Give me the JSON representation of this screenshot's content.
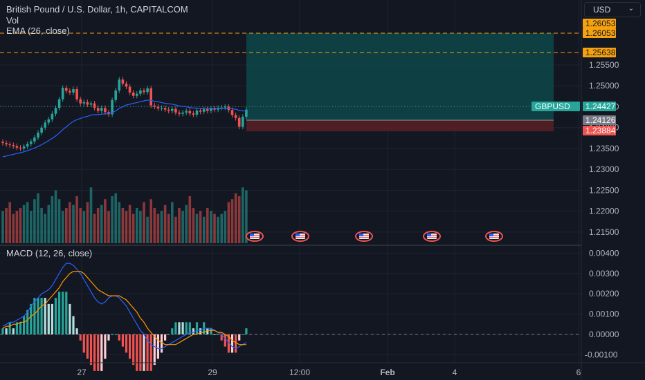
{
  "header": {
    "symbol_title": "British Pound / U.S. Dollar, 1h, CAPITALCOM",
    "volume_label": "Vol",
    "ema_label": "EMA (26, close)",
    "macd_label": "MACD (12, 26, close)",
    "currency_button": "USD"
  },
  "colors": {
    "background": "#131722",
    "up": "#26a69a",
    "down": "#ef5350",
    "ema": "#2962ff",
    "macd_line": "#2962ff",
    "signal_line": "#ff9800",
    "target_zone": "#0e4d4d",
    "stop_zone": "#4d1a1f",
    "dash_level": "#f6a20e"
  },
  "price_axis": {
    "ticks": [
      "1.25500",
      "1.25000",
      "1.24500",
      "1.24000",
      "1.23500",
      "1.23000",
      "1.22500",
      "1.22000",
      "1.21500"
    ],
    "labels": [
      {
        "text": "1.26053",
        "kind": "orange"
      },
      {
        "text": "1.26053",
        "kind": "orange"
      },
      {
        "text": "1.25638",
        "kind": "orange"
      },
      {
        "text": "1.24427",
        "kind": "green"
      },
      {
        "text": "1.24126",
        "kind": "gray"
      },
      {
        "text": "1.23884",
        "kind": "red"
      }
    ],
    "symbol_tag": "GBPUSD"
  },
  "macd_axis": {
    "ticks": [
      "0.00400",
      "0.00300",
      "0.00200",
      "0.00100",
      "0.00000",
      "-0.00100"
    ]
  },
  "time_axis": {
    "labels": [
      {
        "text": "27",
        "bold": false
      },
      {
        "text": "29",
        "bold": false
      },
      {
        "text": "12:00",
        "bold": false
      },
      {
        "text": "Feb",
        "bold": true
      },
      {
        "text": "4",
        "bold": false
      },
      {
        "text": "6",
        "bold": false
      }
    ]
  },
  "position": {
    "entry": 1.24126,
    "target": 1.26053,
    "stop": 1.23884,
    "dashed_levels": [
      1.26053,
      1.25638
    ],
    "last_price": 1.24427
  },
  "events": [
    {
      "icon": "us-flag-icon"
    },
    {
      "icon": "us-flag-icon"
    },
    {
      "icon": "us-flag-icon"
    },
    {
      "icon": "us-flag-icon"
    },
    {
      "icon": "us-flag-icon"
    }
  ],
  "chart_data": {
    "type": "candlestick",
    "title": "British Pound / U.S. Dollar, 1h, CAPITALCOM",
    "price_range": [
      1.2135,
      1.2626
    ],
    "candles_close": [
      1.2363,
      1.236,
      1.2358,
      1.2356,
      1.2352,
      1.235,
      1.2355,
      1.2361,
      1.2367,
      1.2376,
      1.2388,
      1.24,
      1.2412,
      1.242,
      1.2433,
      1.2447,
      1.2468,
      1.2495,
      1.2488,
      1.2484,
      1.2492,
      1.2468,
      1.2458,
      1.2461,
      1.2455,
      1.2458,
      1.2447,
      1.244,
      1.2447,
      1.2437,
      1.2432,
      1.2466,
      1.2489,
      1.2515,
      1.2505,
      1.2498,
      1.2484,
      1.2476,
      1.2481,
      1.2489,
      1.2485,
      1.2494,
      1.2453,
      1.245,
      1.2446,
      1.2447,
      1.2443,
      1.244,
      1.2445,
      1.2436,
      1.2433,
      1.2436,
      1.244,
      1.2434,
      1.2431,
      1.2441,
      1.2438,
      1.2444,
      1.244,
      1.2446,
      1.2443,
      1.2447,
      1.2448,
      1.245,
      1.2442,
      1.243,
      1.2423,
      1.2402,
      1.2426,
      1.2443
    ],
    "volume": [
      0.55,
      0.6,
      0.7,
      0.5,
      0.55,
      0.6,
      0.65,
      0.7,
      0.55,
      0.75,
      0.85,
      0.6,
      0.5,
      0.65,
      0.8,
      0.9,
      0.75,
      0.55,
      0.6,
      0.7,
      0.65,
      0.8,
      0.6,
      0.55,
      0.7,
      0.95,
      0.5,
      0.6,
      0.65,
      0.75,
      0.55,
      0.8,
      0.85,
      0.7,
      0.6,
      0.55,
      0.65,
      0.5,
      0.6,
      0.55,
      0.7,
      0.45,
      0.75,
      0.6,
      0.5,
      0.55,
      0.65,
      0.5,
      0.7,
      0.45,
      0.6,
      0.55,
      0.65,
      0.8,
      0.6,
      0.5,
      0.55,
      0.45,
      0.6,
      0.55,
      0.5,
      0.45,
      0.5,
      0.55,
      0.7,
      0.75,
      0.85,
      0.8,
      0.95,
      0.9
    ],
    "ema_26": [
      1.233,
      1.2332,
      1.2334,
      1.2336,
      1.2338,
      1.234,
      1.2342,
      1.2345,
      1.2348,
      1.2351,
      1.2355,
      1.2359,
      1.2364,
      1.2369,
      1.2374,
      1.238,
      1.2387,
      1.2395,
      1.2402,
      1.2409,
      1.2415,
      1.2419,
      1.2422,
      1.2425,
      1.2427,
      1.243,
      1.2431,
      1.2431,
      1.2432,
      1.2433,
      1.2433,
      1.2436,
      1.244,
      1.2446,
      1.245,
      1.2454,
      1.2456,
      1.2458,
      1.246,
      1.2462,
      1.2464,
      1.2466,
      1.2465,
      1.2463,
      1.2462,
      1.246,
      1.2458,
      1.2457,
      1.2456,
      1.2454,
      1.2452,
      1.2451,
      1.245,
      1.2448,
      1.2447,
      1.2447,
      1.2446,
      1.2446,
      1.2446,
      1.2446,
      1.2446,
      1.2446,
      1.2446,
      1.2446,
      1.2446,
      1.2445,
      1.2444,
      1.2441,
      1.244,
      1.244
    ],
    "macd_range": [
      -0.0012,
      0.004
    ],
    "macd": [
      0.0004,
      0.0005,
      0.0006,
      0.0006,
      0.0007,
      0.0008,
      0.0009,
      0.0011,
      0.0014,
      0.0016,
      0.0018,
      0.002,
      0.0021,
      0.0022,
      0.0024,
      0.0027,
      0.003,
      0.0033,
      0.0035,
      0.0035,
      0.0034,
      0.0032,
      0.003,
      0.0027,
      0.0024,
      0.0021,
      0.0018,
      0.0016,
      0.0015,
      0.0016,
      0.0018,
      0.0019,
      0.0019,
      0.0018,
      0.0016,
      0.0014,
      0.0011,
      0.0008,
      0.0005,
      0.0002,
      0.0,
      -0.0003,
      -0.0005,
      -0.0006,
      -0.0007,
      -0.0007,
      -0.0006,
      -0.0005,
      -0.0004,
      -0.0003,
      -0.0002,
      -0.0001,
      0.0,
      0.0001,
      0.0001,
      0.0002,
      0.0002,
      0.0003,
      0.0003,
      0.0003,
      0.0002,
      0.0001,
      0.0,
      -0.0002,
      -0.0004,
      -0.0006,
      -0.0007,
      -0.0006,
      -0.0005,
      -0.0004
    ],
    "signal": [
      0.0003,
      0.0004,
      0.0004,
      0.0005,
      0.0005,
      0.0006,
      0.0006,
      0.0007,
      0.0009,
      0.001,
      0.0012,
      0.0014,
      0.0015,
      0.0017,
      0.0019,
      0.0021,
      0.0023,
      0.0026,
      0.0028,
      0.003,
      0.0031,
      0.0031,
      0.0031,
      0.003,
      0.0028,
      0.0026,
      0.0024,
      0.0022,
      0.0021,
      0.002,
      0.0019,
      0.0019,
      0.0019,
      0.0019,
      0.0018,
      0.0017,
      0.0015,
      0.0013,
      0.0011,
      0.0008,
      0.0006,
      0.0003,
      0.0001,
      -0.0001,
      -0.0003,
      -0.0004,
      -0.0005,
      -0.0005,
      -0.0005,
      -0.0005,
      -0.0004,
      -0.0003,
      -0.0002,
      -0.0001,
      0.0,
      0.0,
      0.0001,
      0.0001,
      0.0002,
      0.0002,
      0.0002,
      0.0001,
      0.0001,
      0.0,
      -0.0001,
      -0.0003,
      -0.0004,
      -0.0005,
      -0.0005,
      -0.0005
    ]
  }
}
